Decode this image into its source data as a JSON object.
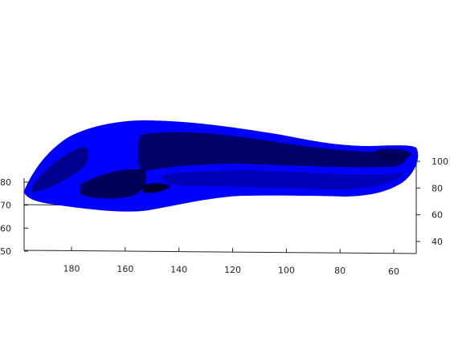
{
  "chart_data": {
    "type": "surface",
    "title": "",
    "xlabel": "",
    "ylabel": "",
    "zlabel": "",
    "grid": false,
    "colors": {
      "surface_main": "#0000ff",
      "surface_dark": "#00005a",
      "surface_shadow": "#000030",
      "axis_line": "#262626"
    },
    "x_axis": {
      "ticks": [
        180,
        160,
        140,
        120,
        100,
        80,
        60
      ],
      "labels": [
        "180",
        "160",
        "140",
        "120",
        "100",
        "80",
        "60"
      ]
    },
    "left_axis": {
      "ticks": [
        50,
        60,
        70,
        80
      ],
      "labels": [
        "50",
        "60",
        "70",
        "80"
      ]
    },
    "right_axis": {
      "ticks": [
        40,
        60,
        80,
        100
      ],
      "labels": [
        "40",
        "60",
        "80",
        "100"
      ]
    }
  }
}
